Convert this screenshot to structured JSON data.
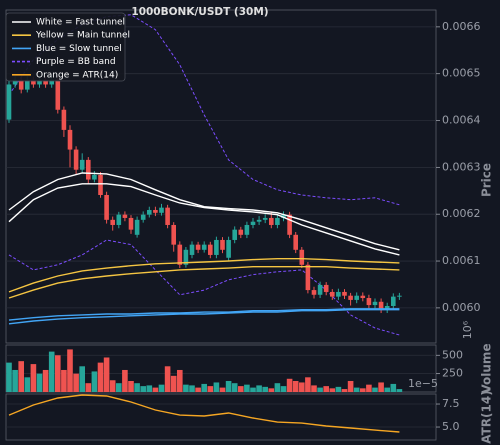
{
  "chart_data": [
    {
      "type": "candlestick",
      "title": "1000BONK/USDT (30M)",
      "ylabel": "Price",
      "offset_label": "10⁶",
      "legend": [
        {
          "name": "White = Fast tunnel",
          "color": "#ffffff",
          "dashed": false
        },
        {
          "name": "Yellow = Main tunnel",
          "color": "#f5c542",
          "dashed": false
        },
        {
          "name": "Blue = Slow tunnel",
          "color": "#42a5f5",
          "dashed": false
        },
        {
          "name": "Purple = BB band",
          "color": "#7c4dff",
          "dashed": true
        },
        {
          "name": "Orange = ATR(14)",
          "color": "#f5a623",
          "dashed": false
        }
      ],
      "categories": [
        null,
        null,
        null,
        null,
        null,
        null,
        null,
        null,
        null,
        null,
        null,
        null,
        null,
        null,
        null,
        null,
        null,
        null,
        null,
        null,
        null,
        null,
        null,
        null,
        null,
        null,
        null,
        null,
        null,
        null,
        null,
        null,
        null,
        null,
        null,
        null,
        null,
        null,
        null,
        null,
        null,
        null,
        null,
        null,
        null,
        null,
        null,
        null,
        null,
        null,
        null,
        null,
        null,
        null,
        null,
        null,
        null,
        null,
        null,
        null,
        null,
        null,
        null,
        null,
        null
      ],
      "open": [
        0.006402,
        0.006477,
        0.006487,
        0.006466,
        0.006487,
        0.006477,
        0.006487,
        0.006477,
        0.006487,
        0.006423,
        0.00638,
        0.006338,
        0.006295,
        0.006316,
        0.006274,
        0.006284,
        0.006241,
        0.006188,
        0.006177,
        0.006199,
        0.006192,
        0.006156,
        0.006188,
        0.006199,
        0.006209,
        0.006203,
        0.006214,
        0.006177,
        0.006135,
        0.006092,
        0.006113,
        0.006135,
        0.006124,
        0.006135,
        0.006113,
        0.006145,
        0.006107,
        0.006145,
        0.006167,
        0.006156,
        0.006177,
        0.006184,
        0.006188,
        0.006192,
        0.006177,
        0.006192,
        0.006199,
        0.006156,
        0.006124,
        0.006092,
        0.006038,
        0.006028,
        0.006049,
        0.006034,
        0.006024,
        0.006034,
        0.006026,
        0.006017,
        0.006026,
        0.006021,
        0.006006,
        0.006013,
        0.005996,
        0.006004,
        0.006024
      ],
      "high": [
        0.006487,
        0.006495,
        0.006494,
        0.006495,
        0.006494,
        0.006494,
        0.006494,
        0.006494,
        0.006494,
        0.00643,
        0.00639,
        0.006345,
        0.00633,
        0.006322,
        0.006292,
        0.00629,
        0.006248,
        0.006195,
        0.006205,
        0.006206,
        0.006198,
        0.006195,
        0.006206,
        0.006216,
        0.006216,
        0.006222,
        0.00622,
        0.006183,
        0.006142,
        0.00613,
        0.006142,
        0.006141,
        0.006142,
        0.006141,
        0.006152,
        0.006151,
        0.006152,
        0.006174,
        0.006173,
        0.006184,
        0.006192,
        0.006196,
        0.0062,
        0.006206,
        0.006199,
        0.006206,
        0.006205,
        0.006162,
        0.00613,
        0.006098,
        0.006045,
        0.006056,
        0.006055,
        0.00604,
        0.006041,
        0.00604,
        0.006032,
        0.006033,
        0.006033,
        0.006028,
        0.00602,
        0.00602,
        0.006011,
        0.006031,
        0.006032
      ],
      "low": [
        0.006395,
        0.00647,
        0.006458,
        0.00646,
        0.00647,
        0.00647,
        0.00647,
        0.00647,
        0.006415,
        0.006365,
        0.0063,
        0.006285,
        0.006288,
        0.006265,
        0.006268,
        0.006235,
        0.00618,
        0.006165,
        0.00617,
        0.006185,
        0.006158,
        0.00615,
        0.006182,
        0.006193,
        0.006196,
        0.006197,
        0.00617,
        0.00612,
        0.006085,
        0.006086,
        0.006106,
        0.006117,
        0.006118,
        0.006106,
        0.006106,
        0.006117,
        0.0061,
        0.006138,
        0.006149,
        0.006149,
        0.00617,
        0.006177,
        0.006181,
        0.00617,
        0.00617,
        0.006185,
        0.006149,
        0.006117,
        0.006085,
        0.006031,
        0.00602,
        0.006021,
        0.006027,
        0.006017,
        0.006017,
        0.006019,
        0.006005,
        0.00601,
        0.006014,
        0.005999,
        0.005999,
        0.005989,
        0.005989,
        0.005997,
        0.006017
      ],
      "close": [
        0.006477,
        0.006487,
        0.006466,
        0.006487,
        0.006477,
        0.006487,
        0.006477,
        0.006487,
        0.006423,
        0.00638,
        0.006338,
        0.006295,
        0.006316,
        0.006274,
        0.006284,
        0.006241,
        0.006188,
        0.006177,
        0.006199,
        0.006192,
        0.006167,
        0.006188,
        0.006199,
        0.006209,
        0.006203,
        0.006214,
        0.006177,
        0.006135,
        0.006092,
        0.006124,
        0.006135,
        0.006124,
        0.006135,
        0.006113,
        0.006145,
        0.006124,
        0.006145,
        0.006167,
        0.006156,
        0.006177,
        0.006184,
        0.006188,
        0.006192,
        0.006177,
        0.006192,
        0.006199,
        0.006156,
        0.006124,
        0.006092,
        0.006038,
        0.006028,
        0.006049,
        0.006034,
        0.006024,
        0.006034,
        0.006026,
        0.006017,
        0.006026,
        0.006021,
        0.006006,
        0.006013,
        0.005996,
        0.006004,
        0.006024,
        0.006026
      ],
      "up_color": "#26a69a",
      "down_color": "#ef5350",
      "overlay": {
        "type": "line",
        "x": [
          0,
          4,
          8,
          12,
          16,
          20,
          24,
          28,
          32,
          36,
          40,
          44,
          48,
          52,
          56,
          60,
          64
        ],
        "series": [
          {
            "color": "#ffffff",
            "dashed": false,
            "values": [
              0.006209,
              0.006248,
              0.006274,
              0.006288,
              0.006286,
              0.006274,
              0.006252,
              0.006231,
              0.006216,
              0.006212,
              0.006209,
              0.006203,
              0.006188,
              0.006171,
              0.006154,
              0.006137,
              0.006124
            ]
          },
          {
            "color": "#ffffff",
            "dashed": false,
            "values": [
              0.006184,
              0.006231,
              0.006256,
              0.006265,
              0.006265,
              0.006259,
              0.006241,
              0.006224,
              0.006214,
              0.006209,
              0.006205,
              0.006199,
              0.006177,
              0.00616,
              0.006143,
              0.006126,
              0.006113
            ]
          },
          {
            "color": "#f5c542",
            "dashed": false,
            "values": [
              0.006034,
              0.006053,
              0.006068,
              0.006079,
              0.006085,
              0.00609,
              0.006094,
              0.006096,
              0.006098,
              0.0061,
              0.006103,
              0.006105,
              0.006105,
              0.006103,
              0.0061,
              0.006098,
              0.006096
            ]
          },
          {
            "color": "#f5c542",
            "dashed": false,
            "values": [
              0.006021,
              0.006038,
              0.006053,
              0.006062,
              0.006068,
              0.006073,
              0.006077,
              0.006081,
              0.006083,
              0.006085,
              0.006088,
              0.006088,
              0.006088,
              0.006088,
              0.006085,
              0.006083,
              0.006081
            ]
          },
          {
            "color": "#42a5f5",
            "dashed": false,
            "values": [
              0.005974,
              0.005979,
              0.005983,
              0.005985,
              0.005987,
              0.005987,
              0.005989,
              0.005989,
              0.005991,
              0.005991,
              0.005994,
              0.005994,
              0.005996,
              0.005996,
              0.005998,
              0.005998,
              0.005998
            ]
          },
          {
            "color": "#42a5f5",
            "dashed": false,
            "values": [
              0.005966,
              0.005972,
              0.005976,
              0.005979,
              0.005981,
              0.005983,
              0.005985,
              0.005987,
              0.005987,
              0.005989,
              0.005991,
              0.005991,
              0.005994,
              0.005994,
              0.005996,
              0.005996,
              0.005996
            ]
          },
          {
            "color": "#7c4dff",
            "dashed": true,
            "values": [
              0.006455,
              0.00653,
              0.006573,
              0.006605,
              0.006622,
              0.006626,
              0.006594,
              0.006519,
              0.006412,
              0.006316,
              0.006274,
              0.006252,
              0.006241,
              0.006235,
              0.006231,
              0.006235,
              0.00622
            ]
          },
          {
            "color": "#7c4dff",
            "dashed": true,
            "values": [
              0.006113,
              0.006081,
              0.006092,
              0.006113,
              0.006145,
              0.006135,
              0.006081,
              0.006028,
              0.006038,
              0.00606,
              0.006071,
              0.006077,
              0.006081,
              0.006038,
              0.005985,
              0.005957,
              0.005942
            ]
          }
        ]
      },
      "ylim": [
        0.005925,
        0.006636
      ],
      "yticks": [
        {
          "value": 0.006,
          "label": "0.0060"
        },
        0.0061,
        0.0062,
        0.0063,
        0.0064,
        0.0065,
        0.0066
      ],
      "grid": true
    },
    {
      "type": "bar",
      "ylabel": "Volume",
      "offset_label": "1e−5",
      "categories": [
        null,
        null,
        null,
        null,
        null,
        null,
        null,
        null,
        null,
        null,
        null,
        null,
        null,
        null,
        null,
        null,
        null,
        null,
        null,
        null,
        null,
        null,
        null,
        null,
        null,
        null,
        null,
        null,
        null,
        null,
        null,
        null,
        null,
        null,
        null,
        null,
        null,
        null,
        null,
        null,
        null,
        null,
        null,
        null,
        null,
        null,
        null,
        null,
        null,
        null,
        null,
        null,
        null,
        null,
        null,
        null,
        null,
        null,
        null,
        null,
        null,
        null,
        null,
        null,
        null
      ],
      "values": [
        400,
        300,
        420,
        200,
        380,
        250,
        300,
        550,
        500,
        300,
        580,
        250,
        350,
        120,
        280,
        400,
        470,
        160,
        120,
        300,
        150,
        120,
        80,
        90,
        60,
        100,
        350,
        220,
        300,
        100,
        90,
        60,
        110,
        80,
        130,
        60,
        150,
        120,
        80,
        100,
        60,
        90,
        70,
        50,
        120,
        80,
        180,
        150,
        130,
        200,
        90,
        60,
        80,
        50,
        70,
        40,
        150,
        60,
        50,
        100,
        60,
        130,
        60,
        110,
        40
      ],
      "up_color": "#26a69a",
      "down_color": "#ef5350",
      "ylim": [
        0,
        640
      ],
      "yticks": [
        250,
        500
      ],
      "grid": true
    },
    {
      "type": "line",
      "ylabel": "ATR(14)",
      "x": [
        0,
        4,
        8,
        12,
        16,
        20,
        24,
        28,
        32,
        36,
        40,
        44,
        48,
        52,
        56,
        60,
        64
      ],
      "series": [
        {
          "color": "#f5a623",
          "dashed": false,
          "values": [
            6.3,
            7.39,
            8.15,
            8.48,
            8.37,
            7.72,
            6.85,
            6.3,
            6.2,
            6.52,
            5.98,
            5.54,
            5.43,
            5.11,
            4.89,
            4.67,
            4.46
          ]
        }
      ],
      "ylim": [
        3.59,
        8.59
      ],
      "yticks": [
        {
          "value": 5,
          "label": "5.0"
        },
        7.5
      ],
      "grid": true
    }
  ]
}
